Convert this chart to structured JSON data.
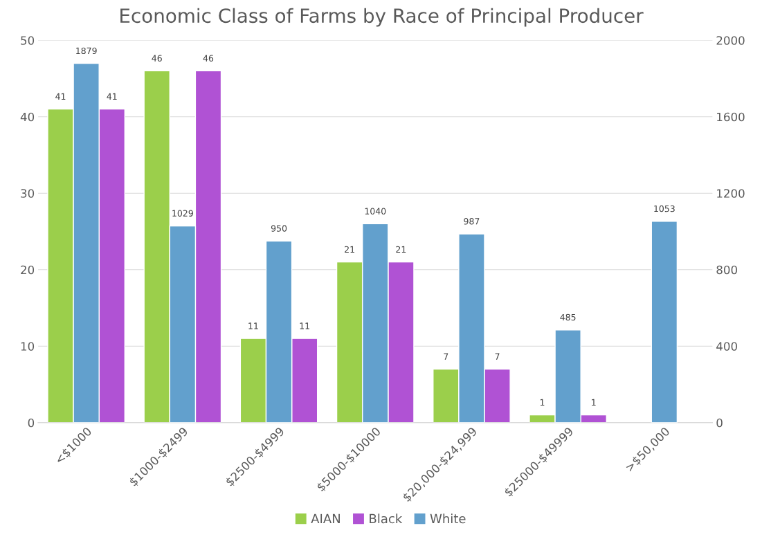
{
  "chart_data": {
    "type": "bar",
    "title": "Economic Class of Farms by Race of Principal Producer",
    "categories": [
      "<$1000",
      "$1000-$2499",
      "$2500-$4999",
      "$5000-$10000",
      "$20,000-$24,999",
      "$25000-$49999",
      ">$50,000"
    ],
    "series": [
      {
        "name": "AIAN",
        "color": "#9bcf4b",
        "values": [
          41,
          46,
          11,
          21,
          7,
          1,
          null
        ]
      },
      {
        "name": "White",
        "color": "#62a0cd",
        "axis": "y2",
        "values": [
          1879,
          1029,
          950,
          1040,
          987,
          485,
          1053
        ]
      },
      {
        "name": "Black",
        "color": "#b052d4",
        "values": [
          41,
          46,
          11,
          21,
          7,
          1,
          null
        ]
      }
    ],
    "ylim": [
      0,
      50
    ],
    "yticks": [
      0,
      10,
      20,
      30,
      40,
      50
    ],
    "y2lim": [
      0,
      2000
    ],
    "y2ticks": [
      0,
      400,
      800,
      1200,
      1600,
      2000
    ],
    "data_labels": true,
    "grid": "y",
    "legend": "bottom"
  }
}
